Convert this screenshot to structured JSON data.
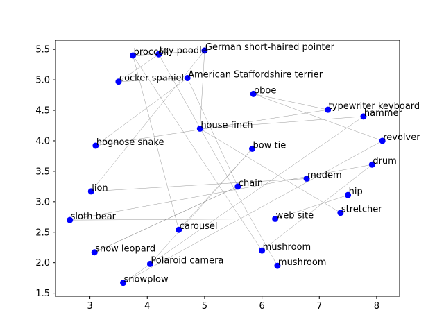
{
  "chart_data": {
    "type": "scatter",
    "title": "",
    "xlabel": "",
    "ylabel": "",
    "xlim": [
      2.4,
      8.4
    ],
    "ylim": [
      1.45,
      5.65
    ],
    "xticks": [
      3,
      4,
      5,
      6,
      7,
      8
    ],
    "yticks": [
      1.5,
      2.0,
      2.5,
      3.0,
      3.5,
      4.0,
      4.5,
      5.0,
      5.5
    ],
    "ytick_labels": [
      "1.5",
      "2.0",
      "2.5",
      "3.0",
      "3.5",
      "4.0",
      "4.5",
      "5.0",
      "5.5"
    ],
    "grid": false,
    "point_color": "#0000ff",
    "edge_color": "#808080",
    "points": [
      {
        "label": "broccoli",
        "x": 3.75,
        "y": 5.4
      },
      {
        "label": "toy poodle",
        "x": 4.2,
        "y": 5.42
      },
      {
        "label": "German short-haired pointer",
        "x": 5.0,
        "y": 5.48
      },
      {
        "label": "cocker spaniel",
        "x": 3.5,
        "y": 4.97
      },
      {
        "label": "American Staffordshire terrier",
        "x": 4.7,
        "y": 5.03
      },
      {
        "label": "oboe",
        "x": 5.85,
        "y": 4.77
      },
      {
        "label": "typewriter keyboard",
        "x": 7.15,
        "y": 4.51
      },
      {
        "label": "hammer",
        "x": 7.77,
        "y": 4.4
      },
      {
        "label": "house finch",
        "x": 4.92,
        "y": 4.2
      },
      {
        "label": "revolver",
        "x": 8.1,
        "y": 4.0
      },
      {
        "label": "hognose snake",
        "x": 3.1,
        "y": 3.92
      },
      {
        "label": "bow tie",
        "x": 5.83,
        "y": 3.87
      },
      {
        "label": "drum",
        "x": 7.92,
        "y": 3.61
      },
      {
        "label": "modem",
        "x": 6.78,
        "y": 3.38
      },
      {
        "label": "chain",
        "x": 5.58,
        "y": 3.25
      },
      {
        "label": "lion",
        "x": 3.02,
        "y": 3.17
      },
      {
        "label": "hip",
        "x": 7.5,
        "y": 3.11
      },
      {
        "label": "stretcher",
        "x": 7.37,
        "y": 2.82
      },
      {
        "label": "web site",
        "x": 6.23,
        "y": 2.72
      },
      {
        "label": "sloth bear",
        "x": 2.65,
        "y": 2.7
      },
      {
        "label": "carousel",
        "x": 4.55,
        "y": 2.54
      },
      {
        "label": "mushroom",
        "x": 6.0,
        "y": 2.2
      },
      {
        "label": "snow leopard",
        "x": 3.08,
        "y": 2.17
      },
      {
        "label": "Polaroid camera",
        "x": 4.05,
        "y": 1.98
      },
      {
        "label": "mushroom",
        "x": 6.27,
        "y": 1.95
      },
      {
        "label": "snowplow",
        "x": 3.58,
        "y": 1.67
      }
    ],
    "edges": [
      [
        0,
        2
      ],
      [
        0,
        20
      ],
      [
        0,
        21
      ],
      [
        1,
        3
      ],
      [
        1,
        24
      ],
      [
        2,
        15
      ],
      [
        2,
        8
      ],
      [
        4,
        10
      ],
      [
        5,
        6
      ],
      [
        5,
        9
      ],
      [
        6,
        10
      ],
      [
        7,
        8
      ],
      [
        8,
        17
      ],
      [
        11,
        23
      ],
      [
        12,
        19
      ],
      [
        13,
        15
      ],
      [
        14,
        22
      ],
      [
        16,
        18
      ],
      [
        11,
        20
      ],
      [
        12,
        21
      ],
      [
        9,
        25
      ],
      [
        18,
        19
      ],
      [
        3,
        4
      ],
      [
        4,
        14
      ],
      [
        7,
        25
      ],
      [
        14,
        22
      ]
    ]
  }
}
